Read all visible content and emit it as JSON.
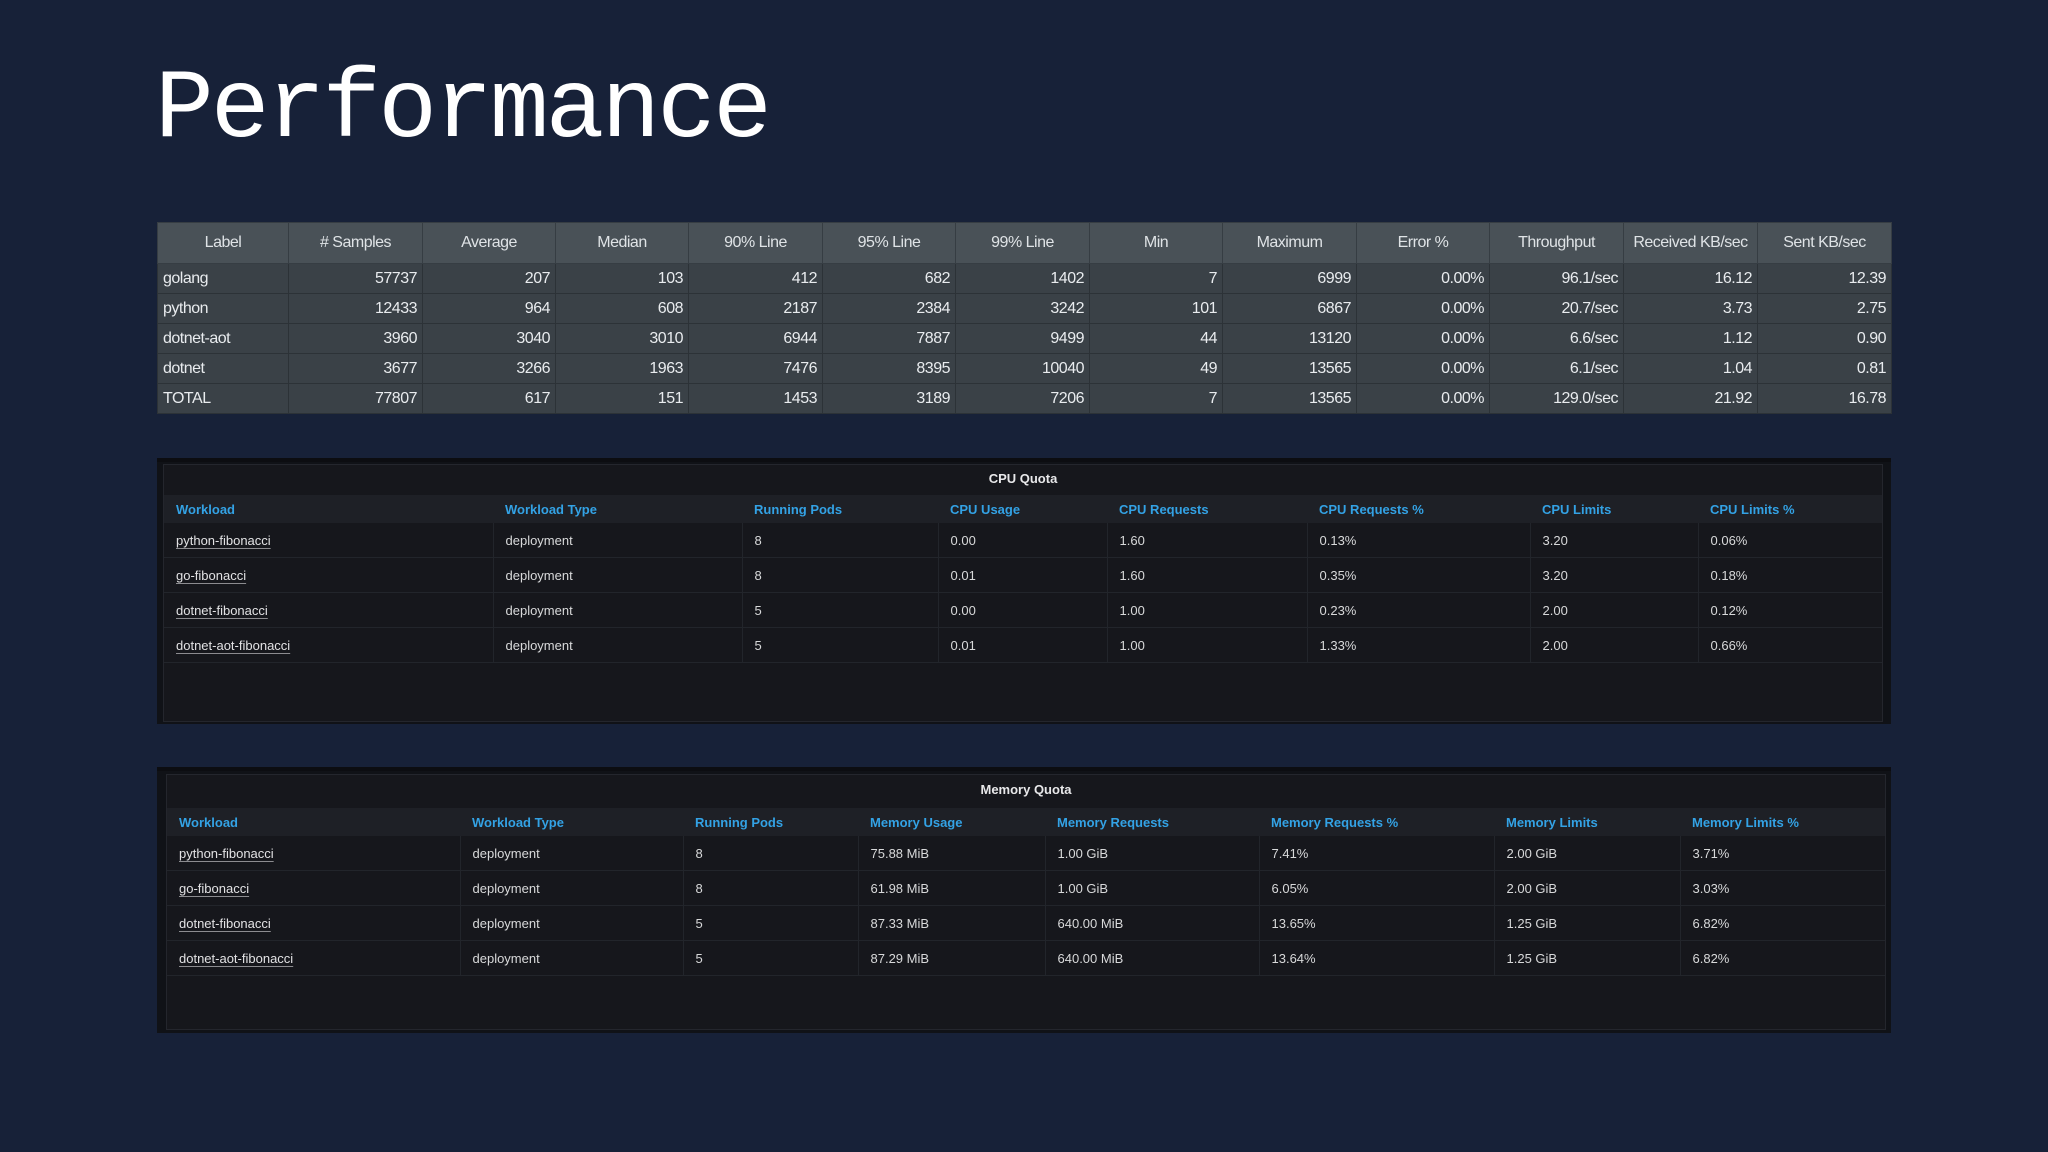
{
  "title": "Performance",
  "summary": {
    "headers": [
      "Label",
      "# Samples",
      "Average",
      "Median",
      "90% Line",
      "95% Line",
      "99% Line",
      "Min",
      "Maximum",
      "Error %",
      "Throughput",
      "Received KB/sec",
      "Sent KB/sec"
    ],
    "rows": [
      [
        "golang",
        "57737",
        "207",
        "103",
        "412",
        "682",
        "1402",
        "7",
        "6999",
        "0.00%",
        "96.1/sec",
        "16.12",
        "12.39"
      ],
      [
        "python",
        "12433",
        "964",
        "608",
        "2187",
        "2384",
        "3242",
        "101",
        "6867",
        "0.00%",
        "20.7/sec",
        "3.73",
        "2.75"
      ],
      [
        "dotnet-aot",
        "3960",
        "3040",
        "3010",
        "6944",
        "7887",
        "9499",
        "44",
        "13120",
        "0.00%",
        "6.6/sec",
        "1.12",
        "0.90"
      ],
      [
        "dotnet",
        "3677",
        "3266",
        "1963",
        "7476",
        "8395",
        "10040",
        "49",
        "13565",
        "0.00%",
        "6.1/sec",
        "1.04",
        "0.81"
      ],
      [
        "TOTAL",
        "77807",
        "617",
        "151",
        "1453",
        "3189",
        "7206",
        "7",
        "13565",
        "0.00%",
        "129.0/sec",
        "21.92",
        "16.78"
      ]
    ]
  },
  "cpu": {
    "title": "CPU Quota",
    "headers": [
      "Workload",
      "Workload Type",
      "Running Pods",
      "CPU Usage",
      "CPU Requests",
      "CPU Requests %",
      "CPU Limits",
      "CPU Limits %"
    ],
    "rows": [
      [
        "python-fibonacci",
        "deployment",
        "8",
        "0.00",
        "1.60",
        "0.13%",
        "3.20",
        "0.06%"
      ],
      [
        "go-fibonacci",
        "deployment",
        "8",
        "0.01",
        "1.60",
        "0.35%",
        "3.20",
        "0.18%"
      ],
      [
        "dotnet-fibonacci",
        "deployment",
        "5",
        "0.00",
        "1.00",
        "0.23%",
        "2.00",
        "0.12%"
      ],
      [
        "dotnet-aot-fibonacci",
        "deployment",
        "5",
        "0.01",
        "1.00",
        "1.33%",
        "2.00",
        "0.66%"
      ]
    ]
  },
  "memory": {
    "title": "Memory Quota",
    "headers": [
      "Workload",
      "Workload Type",
      "Running Pods",
      "Memory Usage",
      "Memory Requests",
      "Memory Requests %",
      "Memory Limits",
      "Memory Limits %"
    ],
    "rows": [
      [
        "python-fibonacci",
        "deployment",
        "8",
        "75.88 MiB",
        "1.00 GiB",
        "7.41%",
        "2.00 GiB",
        "3.71%"
      ],
      [
        "go-fibonacci",
        "deployment",
        "8",
        "61.98 MiB",
        "1.00 GiB",
        "6.05%",
        "2.00 GiB",
        "3.03%"
      ],
      [
        "dotnet-fibonacci",
        "deployment",
        "5",
        "87.33 MiB",
        "640.00 MiB",
        "13.65%",
        "1.25 GiB",
        "6.82%"
      ],
      [
        "dotnet-aot-fibonacci",
        "deployment",
        "5",
        "87.29 MiB",
        "640.00 MiB",
        "13.64%",
        "1.25 GiB",
        "6.82%"
      ]
    ]
  }
}
